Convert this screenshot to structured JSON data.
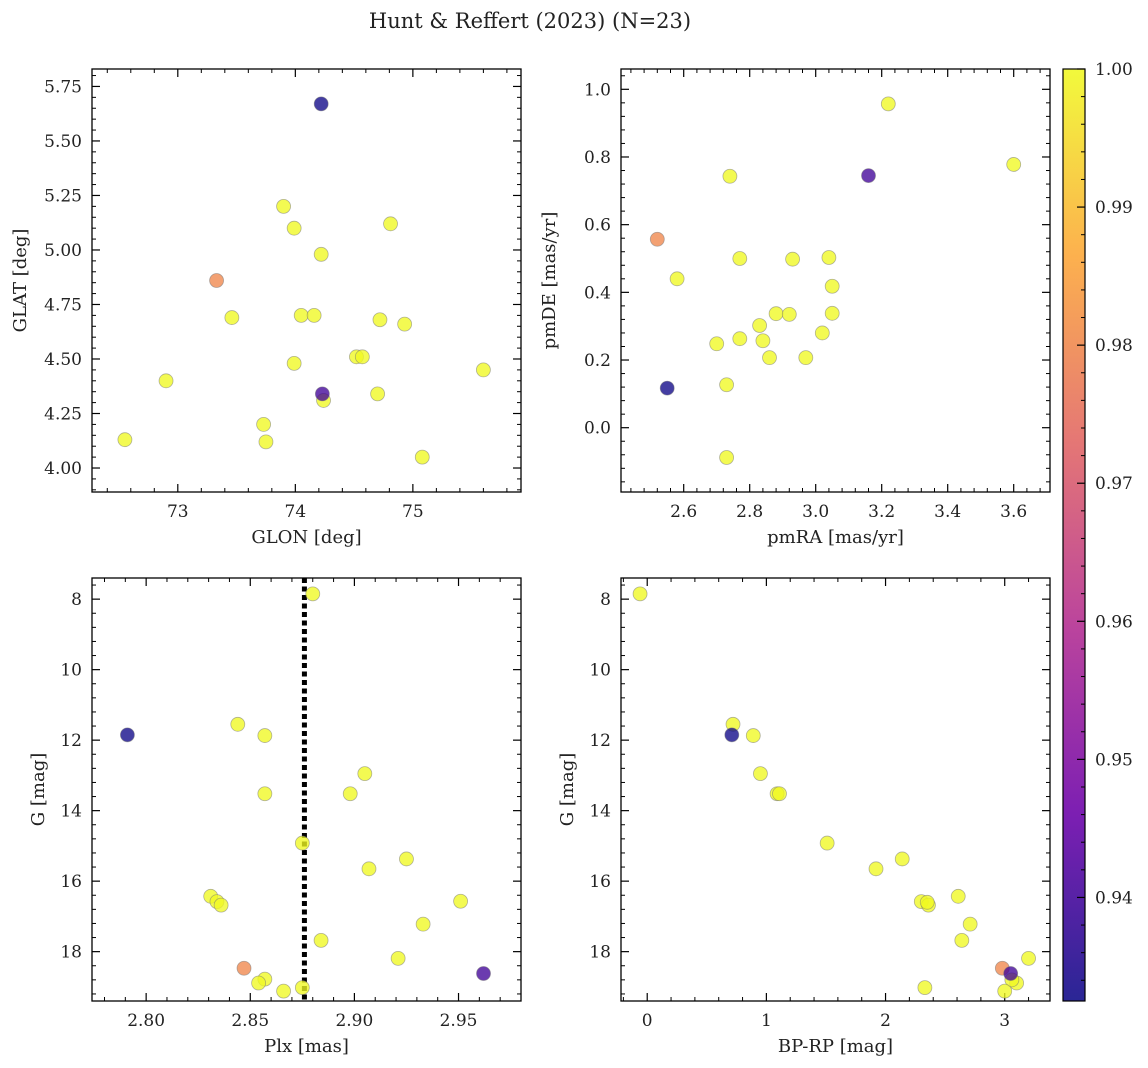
{
  "figure": {
    "title": "Hunt & Reffert (2023) (N=23)"
  },
  "colormap": {
    "name": "plasma",
    "stops": [
      "#0d0887",
      "#6a00a8",
      "#b12a90",
      "#e16462",
      "#fca636",
      "#f0f921"
    ],
    "point_alpha": 0.78,
    "range": [
      0.9325,
      1.0
    ],
    "ticks": [
      "0.94",
      "0.95",
      "0.96",
      "0.97",
      "0.98",
      "0.99",
      "1.00"
    ],
    "tick_values": [
      0.94,
      0.95,
      0.96,
      0.97,
      0.98,
      0.99,
      1.0
    ]
  },
  "chart_data": [
    {
      "type": "scatter",
      "xlabel": "GLON [deg]",
      "ylabel": "GLAT [deg]",
      "xlim": [
        72.27,
        75.92
      ],
      "ylim": [
        3.89,
        5.83
      ],
      "x_ticks": [
        "73",
        "74",
        "75"
      ],
      "x_tick_values": [
        73,
        74,
        75
      ],
      "y_ticks": [
        "4.00",
        "4.25",
        "4.50",
        "4.75",
        "5.00",
        "5.25",
        "5.50",
        "5.75"
      ],
      "y_tick_values": [
        4.0,
        4.25,
        4.5,
        4.75,
        5.0,
        5.25,
        5.5,
        5.75
      ],
      "points": [
        {
          "x": 74.22,
          "y": 5.67,
          "c": 0.933
        },
        {
          "x": 74.23,
          "y": 4.34,
          "c": 0.94
        },
        {
          "x": 73.33,
          "y": 4.86,
          "c": 0.98
        },
        {
          "x": 73.9,
          "y": 5.2,
          "c": 1.0
        },
        {
          "x": 73.99,
          "y": 5.1,
          "c": 1.0
        },
        {
          "x": 74.22,
          "y": 4.98,
          "c": 1.0
        },
        {
          "x": 74.81,
          "y": 5.12,
          "c": 1.0
        },
        {
          "x": 73.46,
          "y": 4.69,
          "c": 1.0
        },
        {
          "x": 74.05,
          "y": 4.7,
          "c": 1.0
        },
        {
          "x": 74.16,
          "y": 4.7,
          "c": 1.0
        },
        {
          "x": 74.72,
          "y": 4.68,
          "c": 1.0
        },
        {
          "x": 74.93,
          "y": 4.66,
          "c": 1.0
        },
        {
          "x": 74.52,
          "y": 4.51,
          "c": 1.0
        },
        {
          "x": 74.57,
          "y": 4.51,
          "c": 1.0
        },
        {
          "x": 73.99,
          "y": 4.48,
          "c": 1.0
        },
        {
          "x": 75.6,
          "y": 4.45,
          "c": 1.0
        },
        {
          "x": 72.9,
          "y": 4.4,
          "c": 1.0
        },
        {
          "x": 74.7,
          "y": 4.34,
          "c": 1.0
        },
        {
          "x": 74.24,
          "y": 4.31,
          "c": 1.0
        },
        {
          "x": 73.73,
          "y": 4.2,
          "c": 1.0
        },
        {
          "x": 72.55,
          "y": 4.13,
          "c": 1.0
        },
        {
          "x": 73.75,
          "y": 4.12,
          "c": 1.0
        },
        {
          "x": 75.08,
          "y": 4.05,
          "c": 1.0
        }
      ]
    },
    {
      "type": "scatter",
      "xlabel": "pmRA [mas/yr]",
      "ylabel": "pmDE [mas/yr]",
      "xlim": [
        2.41,
        3.71
      ],
      "ylim": [
        -0.19,
        1.06
      ],
      "x_ticks": [
        "2.6",
        "2.8",
        "3.0",
        "3.2",
        "3.4",
        "3.6"
      ],
      "x_tick_values": [
        2.6,
        2.8,
        3.0,
        3.2,
        3.4,
        3.6
      ],
      "y_ticks": [
        "0.0",
        "0.2",
        "0.4",
        "0.6",
        "0.8",
        "1.0"
      ],
      "y_tick_values": [
        0.0,
        0.2,
        0.4,
        0.6,
        0.8,
        1.0
      ],
      "points": [
        {
          "x": 2.55,
          "y": 0.117,
          "c": 0.933
        },
        {
          "x": 3.16,
          "y": 0.745,
          "c": 0.94
        },
        {
          "x": 2.52,
          "y": 0.557,
          "c": 0.98
        },
        {
          "x": 3.22,
          "y": 0.957,
          "c": 1.0
        },
        {
          "x": 3.6,
          "y": 0.778,
          "c": 1.0
        },
        {
          "x": 2.74,
          "y": 0.743,
          "c": 1.0
        },
        {
          "x": 2.58,
          "y": 0.44,
          "c": 1.0
        },
        {
          "x": 2.77,
          "y": 0.5,
          "c": 1.0
        },
        {
          "x": 2.93,
          "y": 0.498,
          "c": 1.0
        },
        {
          "x": 3.04,
          "y": 0.503,
          "c": 1.0
        },
        {
          "x": 3.05,
          "y": 0.418,
          "c": 1.0
        },
        {
          "x": 2.88,
          "y": 0.337,
          "c": 1.0
        },
        {
          "x": 2.92,
          "y": 0.335,
          "c": 1.0
        },
        {
          "x": 3.05,
          "y": 0.338,
          "c": 1.0
        },
        {
          "x": 2.83,
          "y": 0.302,
          "c": 1.0
        },
        {
          "x": 3.02,
          "y": 0.28,
          "c": 1.0
        },
        {
          "x": 2.77,
          "y": 0.263,
          "c": 1.0
        },
        {
          "x": 2.84,
          "y": 0.257,
          "c": 1.0
        },
        {
          "x": 2.7,
          "y": 0.248,
          "c": 1.0
        },
        {
          "x": 2.86,
          "y": 0.207,
          "c": 1.0
        },
        {
          "x": 2.97,
          "y": 0.207,
          "c": 1.0
        },
        {
          "x": 2.73,
          "y": 0.127,
          "c": 1.0
        },
        {
          "x": 2.73,
          "y": -0.088,
          "c": 1.0
        }
      ]
    },
    {
      "type": "scatter",
      "xlabel": "Plx [mas]",
      "ylabel": "G [mag]",
      "xlim": [
        2.774,
        2.98
      ],
      "ylim": [
        19.4,
        7.4
      ],
      "y_inverted": true,
      "vline_x": 2.876,
      "x_ticks": [
        "2.80",
        "2.85",
        "2.90",
        "2.95"
      ],
      "x_tick_values": [
        2.8,
        2.85,
        2.9,
        2.95
      ],
      "y_ticks": [
        "8",
        "10",
        "12",
        "14",
        "16",
        "18"
      ],
      "y_tick_values": [
        8,
        10,
        12,
        14,
        16,
        18
      ],
      "points": [
        {
          "x": 2.791,
          "y": 11.85,
          "c": 0.933
        },
        {
          "x": 2.962,
          "y": 18.62,
          "c": 0.94
        },
        {
          "x": 2.847,
          "y": 18.47,
          "c": 0.98
        },
        {
          "x": 2.88,
          "y": 7.85,
          "c": 1.0
        },
        {
          "x": 2.844,
          "y": 11.55,
          "c": 1.0
        },
        {
          "x": 2.857,
          "y": 11.87,
          "c": 1.0
        },
        {
          "x": 2.905,
          "y": 12.95,
          "c": 1.0
        },
        {
          "x": 2.857,
          "y": 13.52,
          "c": 1.0
        },
        {
          "x": 2.898,
          "y": 13.52,
          "c": 1.0
        },
        {
          "x": 2.875,
          "y": 14.92,
          "c": 1.0
        },
        {
          "x": 2.925,
          "y": 15.37,
          "c": 1.0
        },
        {
          "x": 2.907,
          "y": 15.65,
          "c": 1.0
        },
        {
          "x": 2.831,
          "y": 16.43,
          "c": 1.0
        },
        {
          "x": 2.834,
          "y": 16.58,
          "c": 1.0
        },
        {
          "x": 2.836,
          "y": 16.68,
          "c": 1.0
        },
        {
          "x": 2.951,
          "y": 16.57,
          "c": 1.0
        },
        {
          "x": 2.933,
          "y": 17.22,
          "c": 1.0
        },
        {
          "x": 2.884,
          "y": 17.68,
          "c": 1.0
        },
        {
          "x": 2.921,
          "y": 18.19,
          "c": 1.0
        },
        {
          "x": 2.857,
          "y": 18.78,
          "c": 1.0
        },
        {
          "x": 2.854,
          "y": 18.89,
          "c": 1.0
        },
        {
          "x": 2.866,
          "y": 19.12,
          "c": 1.0
        },
        {
          "x": 2.875,
          "y": 19.02,
          "c": 1.0
        }
      ]
    },
    {
      "type": "scatter",
      "xlabel": "BP-RP [mag]",
      "ylabel": "G [mag]",
      "xlim": [
        -0.22,
        3.38
      ],
      "ylim": [
        19.4,
        7.4
      ],
      "y_inverted": true,
      "x_ticks": [
        "0",
        "1",
        "2",
        "3"
      ],
      "x_tick_values": [
        0,
        1,
        2,
        3
      ],
      "y_ticks": [
        "8",
        "10",
        "12",
        "14",
        "16",
        "18"
      ],
      "y_tick_values": [
        8,
        10,
        12,
        14,
        16,
        18
      ],
      "points": [
        {
          "x": 0.71,
          "y": 11.85,
          "c": 0.933
        },
        {
          "x": 3.05,
          "y": 18.62,
          "c": 0.94
        },
        {
          "x": 2.98,
          "y": 18.47,
          "c": 0.98
        },
        {
          "x": -0.06,
          "y": 7.85,
          "c": 1.0
        },
        {
          "x": 0.72,
          "y": 11.55,
          "c": 1.0
        },
        {
          "x": 0.89,
          "y": 11.87,
          "c": 1.0
        },
        {
          "x": 0.95,
          "y": 12.95,
          "c": 1.0
        },
        {
          "x": 1.09,
          "y": 13.52,
          "c": 1.0
        },
        {
          "x": 1.11,
          "y": 13.52,
          "c": 1.0
        },
        {
          "x": 1.51,
          "y": 14.92,
          "c": 1.0
        },
        {
          "x": 2.14,
          "y": 15.37,
          "c": 1.0
        },
        {
          "x": 1.92,
          "y": 15.65,
          "c": 1.0
        },
        {
          "x": 2.61,
          "y": 16.43,
          "c": 1.0
        },
        {
          "x": 2.3,
          "y": 16.58,
          "c": 1.0
        },
        {
          "x": 2.36,
          "y": 16.68,
          "c": 1.0
        },
        {
          "x": 2.35,
          "y": 16.6,
          "c": 1.0
        },
        {
          "x": 2.71,
          "y": 17.22,
          "c": 1.0
        },
        {
          "x": 2.64,
          "y": 17.68,
          "c": 1.0
        },
        {
          "x": 3.2,
          "y": 18.19,
          "c": 1.0
        },
        {
          "x": 3.1,
          "y": 18.89,
          "c": 1.0
        },
        {
          "x": 3.06,
          "y": 18.8,
          "c": 1.0
        },
        {
          "x": 2.33,
          "y": 19.02,
          "c": 1.0
        },
        {
          "x": 3.0,
          "y": 19.12,
          "c": 1.0
        }
      ]
    }
  ]
}
